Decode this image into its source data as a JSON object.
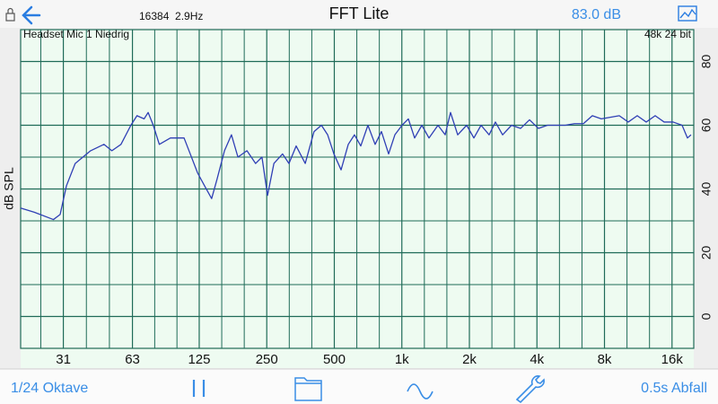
{
  "header": {
    "info": "16384  2.9Hz",
    "title": "FFT Lite",
    "level": "83.0 dB"
  },
  "chart_data": {
    "type": "line",
    "input_label": "Headset Mic 1 Niedrig",
    "format_label": "48k 24 bit",
    "y_label": "dB SPL",
    "x": [
      20,
      23,
      28,
      30,
      32,
      35,
      41,
      47,
      51,
      56,
      62,
      66,
      71,
      74,
      78,
      83,
      93,
      107,
      114,
      123,
      132,
      142,
      150,
      162,
      174,
      186,
      204,
      223,
      238,
      252,
      269,
      294,
      314,
      338,
      371,
      406,
      438,
      467,
      498,
      536,
      577,
      615,
      656,
      706,
      760,
      811,
      873,
      931,
      1002,
      1069,
      1140,
      1228,
      1321,
      1449,
      1560,
      1648,
      1774,
      1945,
      2094,
      2254,
      2449,
      2612,
      2812,
      3083,
      3381,
      3707,
      4064,
      4457,
      4887,
      5358,
      5875,
      6442,
      7063,
      7745,
      8492,
      9311,
      10210,
      11196,
      12276,
      13460,
      14760,
      16180,
      17740,
      18750,
      19450
    ],
    "series": [
      {
        "color": "#2f3fb5",
        "values": [
          34,
          32.7,
          30.4,
          32,
          41,
          48,
          52,
          54,
          52,
          54,
          60,
          63,
          62,
          64,
          60,
          54,
          56,
          56,
          51,
          45,
          41,
          37,
          43,
          52,
          57,
          50,
          52,
          48,
          50,
          38,
          48,
          51,
          48,
          53.5,
          48,
          58,
          60,
          57,
          51,
          46,
          54,
          57,
          53.5,
          60,
          54,
          58,
          51,
          57,
          60,
          62,
          56,
          60,
          56,
          60,
          57,
          64,
          57,
          60,
          56,
          60,
          57,
          61,
          57,
          60,
          59,
          61.7,
          59,
          60,
          60,
          60,
          60.5,
          60.5,
          63,
          62,
          62.5,
          63,
          61,
          63,
          61,
          63,
          61,
          61,
          60,
          56,
          57
        ]
      }
    ],
    "xlim": [
      20,
      20000
    ],
    "ylim": [
      -10,
      90
    ],
    "xscale": "log",
    "grid": true,
    "xticks": [
      31,
      63,
      125,
      250,
      500,
      {
        "value": 1000,
        "label": "1k"
      },
      {
        "value": 2000,
        "label": "2k"
      },
      {
        "value": 4000,
        "label": "4k"
      },
      {
        "value": 8000,
        "label": "8k"
      },
      {
        "value": 16000,
        "label": "16k"
      }
    ],
    "yticks": [
      0,
      20,
      40,
      60,
      80
    ]
  },
  "toolbar": {
    "resolution": "1/24 Oktave",
    "decay": "0.5s Abfall"
  }
}
